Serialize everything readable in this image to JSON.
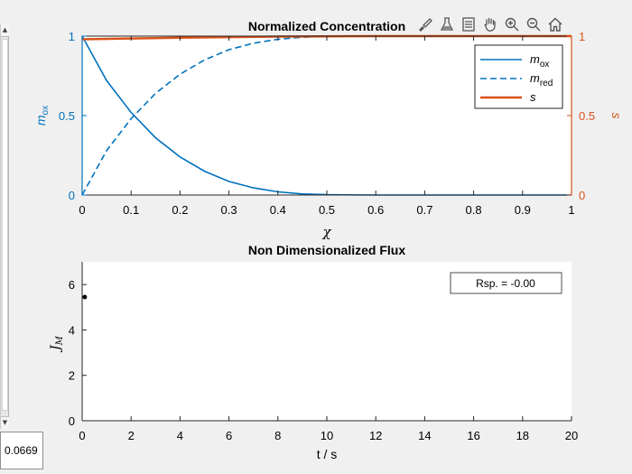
{
  "slider_value": "0.0669",
  "toolbar": [
    "brush-icon",
    "data-tip-icon",
    "legend-icon",
    "pan-icon",
    "zoom-in-icon",
    "zoom-out-icon",
    "home-icon"
  ],
  "colors": {
    "blue": "#0072bd",
    "orange": "#d95319",
    "black": "#000000"
  },
  "chart_data": [
    {
      "type": "line",
      "title": "Normalized Concentration",
      "xlabel": "χ",
      "ylabel_left": "m",
      "ylabel_left_sub": "ox",
      "ylabel_right": "s",
      "xlim": [
        0,
        1
      ],
      "ylim_left": [
        0,
        1
      ],
      "ylim_right": [
        0,
        1
      ],
      "xticks": [
        0,
        0.1,
        0.2,
        0.3,
        0.4,
        0.5,
        0.6,
        0.7,
        0.8,
        0.9,
        1
      ],
      "xtick_labels": [
        "0",
        "0.1",
        "0.2",
        "0.3",
        "0.4",
        "0.5",
        "0.6",
        "0.7",
        "0.8",
        "0.9",
        "1"
      ],
      "yticks_left": [
        0,
        0.5,
        1
      ],
      "ytick_labels_left": [
        "0",
        "0.5",
        "1"
      ],
      "yticks_right": [
        0,
        0.5,
        1
      ],
      "ytick_labels_right": [
        "0",
        "0.5",
        "1"
      ],
      "legend_position": "top-right",
      "series": [
        {
          "name": "m",
          "sub": "ox",
          "style": "solid",
          "axis": "left",
          "color": "#0072bd",
          "x": [
            0,
            0.05,
            0.1,
            0.15,
            0.2,
            0.25,
            0.3,
            0.35,
            0.4,
            0.45,
            0.5,
            0.6,
            0.7,
            0.8,
            0.9,
            1
          ],
          "y": [
            1,
            0.72,
            0.52,
            0.36,
            0.24,
            0.15,
            0.085,
            0.045,
            0.02,
            0.007,
            0.002,
            0,
            0,
            0,
            0,
            0
          ]
        },
        {
          "name": "m",
          "sub": "red",
          "style": "dashed",
          "axis": "left",
          "color": "#0072bd",
          "x": [
            0,
            0.05,
            0.1,
            0.15,
            0.2,
            0.25,
            0.3,
            0.35,
            0.4,
            0.45,
            0.5,
            0.6,
            0.7,
            0.8,
            0.9,
            1
          ],
          "y": [
            0,
            0.28,
            0.48,
            0.64,
            0.76,
            0.85,
            0.915,
            0.955,
            0.98,
            0.993,
            0.998,
            1,
            1,
            1,
            1,
            1
          ]
        },
        {
          "name": "s",
          "sub": "",
          "style": "solid",
          "axis": "right",
          "color": "#d95319",
          "x": [
            0,
            0.1,
            0.2,
            0.3,
            0.4,
            0.5,
            0.6,
            0.7,
            0.8,
            0.9,
            1
          ],
          "y": [
            0.98,
            0.985,
            0.99,
            0.994,
            0.997,
            0.999,
            1,
            1,
            1,
            1,
            1
          ]
        }
      ]
    },
    {
      "type": "scatter",
      "title": "Non Dimensionalized Flux",
      "xlabel": "t / s",
      "ylabel": "J",
      "ylabel_sub": "M",
      "xlim": [
        0,
        20
      ],
      "ylim": [
        0,
        7
      ],
      "xticks": [
        0,
        2,
        4,
        6,
        8,
        10,
        12,
        14,
        16,
        18,
        20
      ],
      "xtick_labels": [
        "0",
        "2",
        "4",
        "6",
        "8",
        "10",
        "12",
        "14",
        "16",
        "18",
        "20"
      ],
      "yticks": [
        0,
        2,
        4,
        6
      ],
      "ytick_labels": [
        "0",
        "2",
        "4",
        "6"
      ],
      "annotation": "Rsp. = -0.00",
      "series": [
        {
          "x": [
            0.05
          ],
          "y": [
            5.45
          ],
          "color": "#000000"
        }
      ]
    }
  ]
}
